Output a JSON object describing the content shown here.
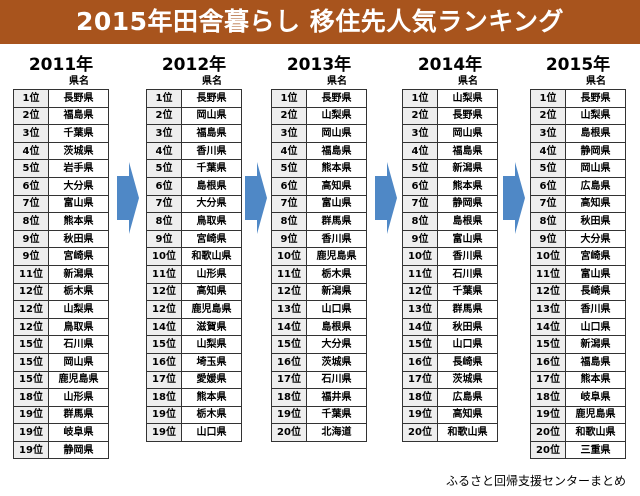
{
  "title": "2015年田舎暮らし 移住先人気ランキング",
  "column_header": "県名",
  "source": "ふるさと回帰支援センターまとめ",
  "colors": {
    "banner": "#a8541d",
    "arrow": "#4f88c6",
    "rank_cell": "#eeeeee"
  },
  "chart_data": {
    "type": "table",
    "columns": [
      {
        "year": "2011年",
        "rows": [
          {
            "rank": "1位",
            "pref": "長野県"
          },
          {
            "rank": "2位",
            "pref": "福島県"
          },
          {
            "rank": "3位",
            "pref": "千葉県"
          },
          {
            "rank": "4位",
            "pref": "茨城県"
          },
          {
            "rank": "5位",
            "pref": "岩手県"
          },
          {
            "rank": "6位",
            "pref": "大分県"
          },
          {
            "rank": "7位",
            "pref": "富山県"
          },
          {
            "rank": "8位",
            "pref": "熊本県"
          },
          {
            "rank": "9位",
            "pref": "秋田県"
          },
          {
            "rank": "9位",
            "pref": "宮崎県"
          },
          {
            "rank": "11位",
            "pref": "新潟県"
          },
          {
            "rank": "12位",
            "pref": "栃木県"
          },
          {
            "rank": "12位",
            "pref": "山梨県"
          },
          {
            "rank": "12位",
            "pref": "鳥取県"
          },
          {
            "rank": "15位",
            "pref": "石川県"
          },
          {
            "rank": "15位",
            "pref": "岡山県"
          },
          {
            "rank": "15位",
            "pref": "鹿児島県"
          },
          {
            "rank": "18位",
            "pref": "山形県"
          },
          {
            "rank": "19位",
            "pref": "群馬県"
          },
          {
            "rank": "19位",
            "pref": "岐阜県"
          },
          {
            "rank": "19位",
            "pref": "静岡県"
          }
        ]
      },
      {
        "year": "2012年",
        "rows": [
          {
            "rank": "1位",
            "pref": "長野県"
          },
          {
            "rank": "2位",
            "pref": "岡山県"
          },
          {
            "rank": "3位",
            "pref": "福島県"
          },
          {
            "rank": "4位",
            "pref": "香川県"
          },
          {
            "rank": "5位",
            "pref": "千葉県"
          },
          {
            "rank": "6位",
            "pref": "島根県"
          },
          {
            "rank": "7位",
            "pref": "大分県"
          },
          {
            "rank": "8位",
            "pref": "鳥取県"
          },
          {
            "rank": "9位",
            "pref": "宮崎県"
          },
          {
            "rank": "10位",
            "pref": "和歌山県"
          },
          {
            "rank": "11位",
            "pref": "山形県"
          },
          {
            "rank": "12位",
            "pref": "高知県"
          },
          {
            "rank": "12位",
            "pref": "鹿児島県"
          },
          {
            "rank": "14位",
            "pref": "滋賀県"
          },
          {
            "rank": "15位",
            "pref": "山梨県"
          },
          {
            "rank": "16位",
            "pref": "埼玉県"
          },
          {
            "rank": "17位",
            "pref": "愛媛県"
          },
          {
            "rank": "18位",
            "pref": "熊本県"
          },
          {
            "rank": "19位",
            "pref": "栃木県"
          },
          {
            "rank": "19位",
            "pref": "山口県"
          }
        ]
      },
      {
        "year": "2013年",
        "rows": [
          {
            "rank": "1位",
            "pref": "長野県"
          },
          {
            "rank": "2位",
            "pref": "山梨県"
          },
          {
            "rank": "3位",
            "pref": "岡山県"
          },
          {
            "rank": "4位",
            "pref": "福島県"
          },
          {
            "rank": "5位",
            "pref": "熊本県"
          },
          {
            "rank": "6位",
            "pref": "高知県"
          },
          {
            "rank": "7位",
            "pref": "富山県"
          },
          {
            "rank": "8位",
            "pref": "群馬県"
          },
          {
            "rank": "9位",
            "pref": "香川県"
          },
          {
            "rank": "10位",
            "pref": "鹿児島県"
          },
          {
            "rank": "11位",
            "pref": "栃木県"
          },
          {
            "rank": "12位",
            "pref": "新潟県"
          },
          {
            "rank": "13位",
            "pref": "山口県"
          },
          {
            "rank": "14位",
            "pref": "島根県"
          },
          {
            "rank": "15位",
            "pref": "大分県"
          },
          {
            "rank": "16位",
            "pref": "茨城県"
          },
          {
            "rank": "17位",
            "pref": "石川県"
          },
          {
            "rank": "18位",
            "pref": "福井県"
          },
          {
            "rank": "19位",
            "pref": "千葉県"
          },
          {
            "rank": "20位",
            "pref": "北海道"
          }
        ]
      },
      {
        "year": "2014年",
        "rows": [
          {
            "rank": "1位",
            "pref": "山梨県"
          },
          {
            "rank": "2位",
            "pref": "長野県"
          },
          {
            "rank": "3位",
            "pref": "岡山県"
          },
          {
            "rank": "4位",
            "pref": "福島県"
          },
          {
            "rank": "5位",
            "pref": "新潟県"
          },
          {
            "rank": "6位",
            "pref": "熊本県"
          },
          {
            "rank": "7位",
            "pref": "静岡県"
          },
          {
            "rank": "8位",
            "pref": "島根県"
          },
          {
            "rank": "9位",
            "pref": "富山県"
          },
          {
            "rank": "10位",
            "pref": "香川県"
          },
          {
            "rank": "11位",
            "pref": "石川県"
          },
          {
            "rank": "12位",
            "pref": "千葉県"
          },
          {
            "rank": "13位",
            "pref": "群馬県"
          },
          {
            "rank": "14位",
            "pref": "秋田県"
          },
          {
            "rank": "15位",
            "pref": "山口県"
          },
          {
            "rank": "16位",
            "pref": "長崎県"
          },
          {
            "rank": "17位",
            "pref": "茨城県"
          },
          {
            "rank": "18位",
            "pref": "広島県"
          },
          {
            "rank": "19位",
            "pref": "高知県"
          },
          {
            "rank": "20位",
            "pref": "和歌山県"
          }
        ]
      },
      {
        "year": "2015年",
        "rows": [
          {
            "rank": "1位",
            "pref": "長野県"
          },
          {
            "rank": "2位",
            "pref": "山梨県"
          },
          {
            "rank": "3位",
            "pref": "島根県"
          },
          {
            "rank": "4位",
            "pref": "静岡県"
          },
          {
            "rank": "5位",
            "pref": "岡山県"
          },
          {
            "rank": "6位",
            "pref": "広島県"
          },
          {
            "rank": "7位",
            "pref": "高知県"
          },
          {
            "rank": "8位",
            "pref": "秋田県"
          },
          {
            "rank": "9位",
            "pref": "大分県"
          },
          {
            "rank": "10位",
            "pref": "宮崎県"
          },
          {
            "rank": "11位",
            "pref": "富山県"
          },
          {
            "rank": "12位",
            "pref": "長崎県"
          },
          {
            "rank": "13位",
            "pref": "香川県"
          },
          {
            "rank": "14位",
            "pref": "山口県"
          },
          {
            "rank": "15位",
            "pref": "新潟県"
          },
          {
            "rank": "16位",
            "pref": "福島県"
          },
          {
            "rank": "17位",
            "pref": "熊本県"
          },
          {
            "rank": "18位",
            "pref": "岐阜県"
          },
          {
            "rank": "19位",
            "pref": "鹿児島県"
          },
          {
            "rank": "20位",
            "pref": "和歌山県"
          },
          {
            "rank": "20位",
            "pref": "三重県"
          }
        ]
      }
    ]
  }
}
